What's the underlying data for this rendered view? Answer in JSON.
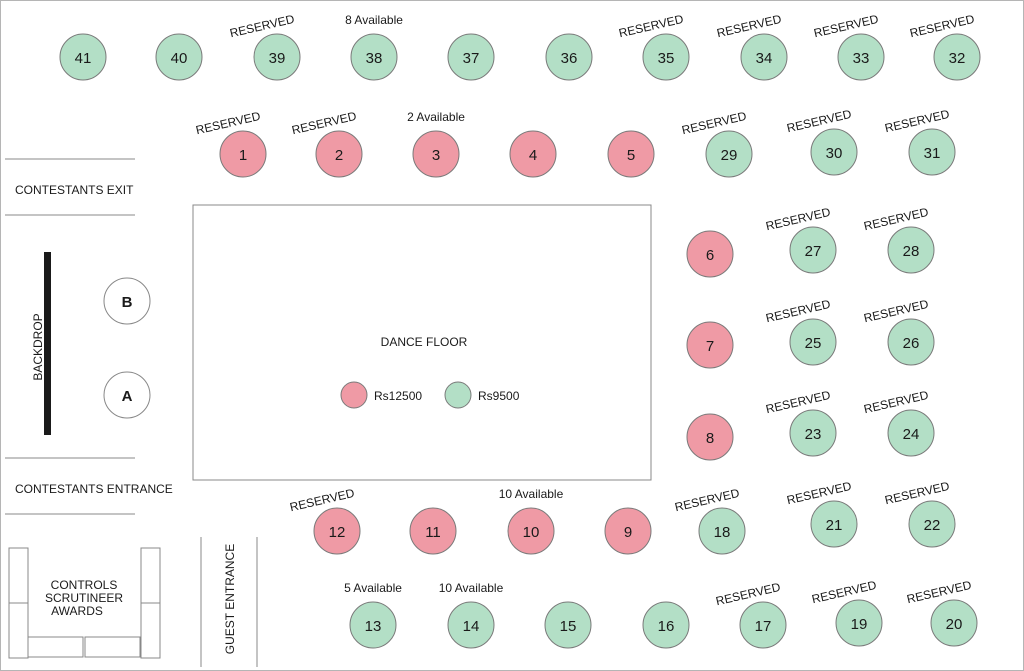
{
  "colors": {
    "premium": "#ef9aa5",
    "standard": "#b3dfc6",
    "stroke": "#7a7a7a",
    "text": "#1a1a1a"
  },
  "labels": {
    "dance_floor": "DANCE FLOOR",
    "contestants_exit": "CONTESTANTS EXIT",
    "contestants_entrance": "CONTESTANTS ENTRANCE",
    "backdrop": "BACKDROP",
    "guest_entrance": "GUEST ENTRANCE",
    "controls": [
      "CONTROLS",
      "SCRUTINEER",
      "AWARDS"
    ],
    "judge_a": "A",
    "judge_b": "B"
  },
  "legend": [
    {
      "label": "Rs12500",
      "category": "premium"
    },
    {
      "label": "Rs9500",
      "category": "standard"
    }
  ],
  "tables": [
    {
      "id": "41",
      "category": "standard"
    },
    {
      "id": "40",
      "category": "standard"
    },
    {
      "id": "39",
      "category": "standard",
      "note": "RESERVED"
    },
    {
      "id": "38",
      "category": "standard",
      "note": "8 Available"
    },
    {
      "id": "37",
      "category": "standard"
    },
    {
      "id": "36",
      "category": "standard"
    },
    {
      "id": "35",
      "category": "standard",
      "note": "RESERVED"
    },
    {
      "id": "34",
      "category": "standard",
      "note": "RESERVED"
    },
    {
      "id": "33",
      "category": "standard",
      "note": "RESERVED"
    },
    {
      "id": "32",
      "category": "standard",
      "note": "RESERVED"
    },
    {
      "id": "1",
      "category": "premium",
      "note": "RESERVED"
    },
    {
      "id": "2",
      "category": "premium",
      "note": "RESERVED"
    },
    {
      "id": "3",
      "category": "premium",
      "note": "2 Available"
    },
    {
      "id": "4",
      "category": "premium"
    },
    {
      "id": "5",
      "category": "premium"
    },
    {
      "id": "29",
      "category": "standard",
      "note": "RESERVED"
    },
    {
      "id": "30",
      "category": "standard",
      "note": "RESERVED"
    },
    {
      "id": "31",
      "category": "standard",
      "note": "RESERVED"
    },
    {
      "id": "6",
      "category": "premium"
    },
    {
      "id": "27",
      "category": "standard",
      "note": "RESERVED"
    },
    {
      "id": "28",
      "category": "standard",
      "note": "RESERVED"
    },
    {
      "id": "7",
      "category": "premium"
    },
    {
      "id": "25",
      "category": "standard",
      "note": "RESERVED"
    },
    {
      "id": "26",
      "category": "standard",
      "note": "RESERVED"
    },
    {
      "id": "8",
      "category": "premium"
    },
    {
      "id": "23",
      "category": "standard",
      "note": "RESERVED"
    },
    {
      "id": "24",
      "category": "standard",
      "note": "RESERVED"
    },
    {
      "id": "12",
      "category": "premium",
      "note": "RESERVED"
    },
    {
      "id": "11",
      "category": "premium"
    },
    {
      "id": "10",
      "category": "premium",
      "note": "10 Available"
    },
    {
      "id": "9",
      "category": "premium"
    },
    {
      "id": "18",
      "category": "standard",
      "note": "RESERVED"
    },
    {
      "id": "21",
      "category": "standard",
      "note": "RESERVED"
    },
    {
      "id": "22",
      "category": "standard",
      "note": "RESERVED"
    },
    {
      "id": "13",
      "category": "standard",
      "note": "5 Available"
    },
    {
      "id": "14",
      "category": "standard",
      "note": "10 Available"
    },
    {
      "id": "15",
      "category": "standard"
    },
    {
      "id": "16",
      "category": "standard"
    },
    {
      "id": "17",
      "category": "standard",
      "note": "RESERVED"
    },
    {
      "id": "19",
      "category": "standard",
      "note": "RESERVED"
    },
    {
      "id": "20",
      "category": "standard",
      "note": "RESERVED"
    }
  ]
}
